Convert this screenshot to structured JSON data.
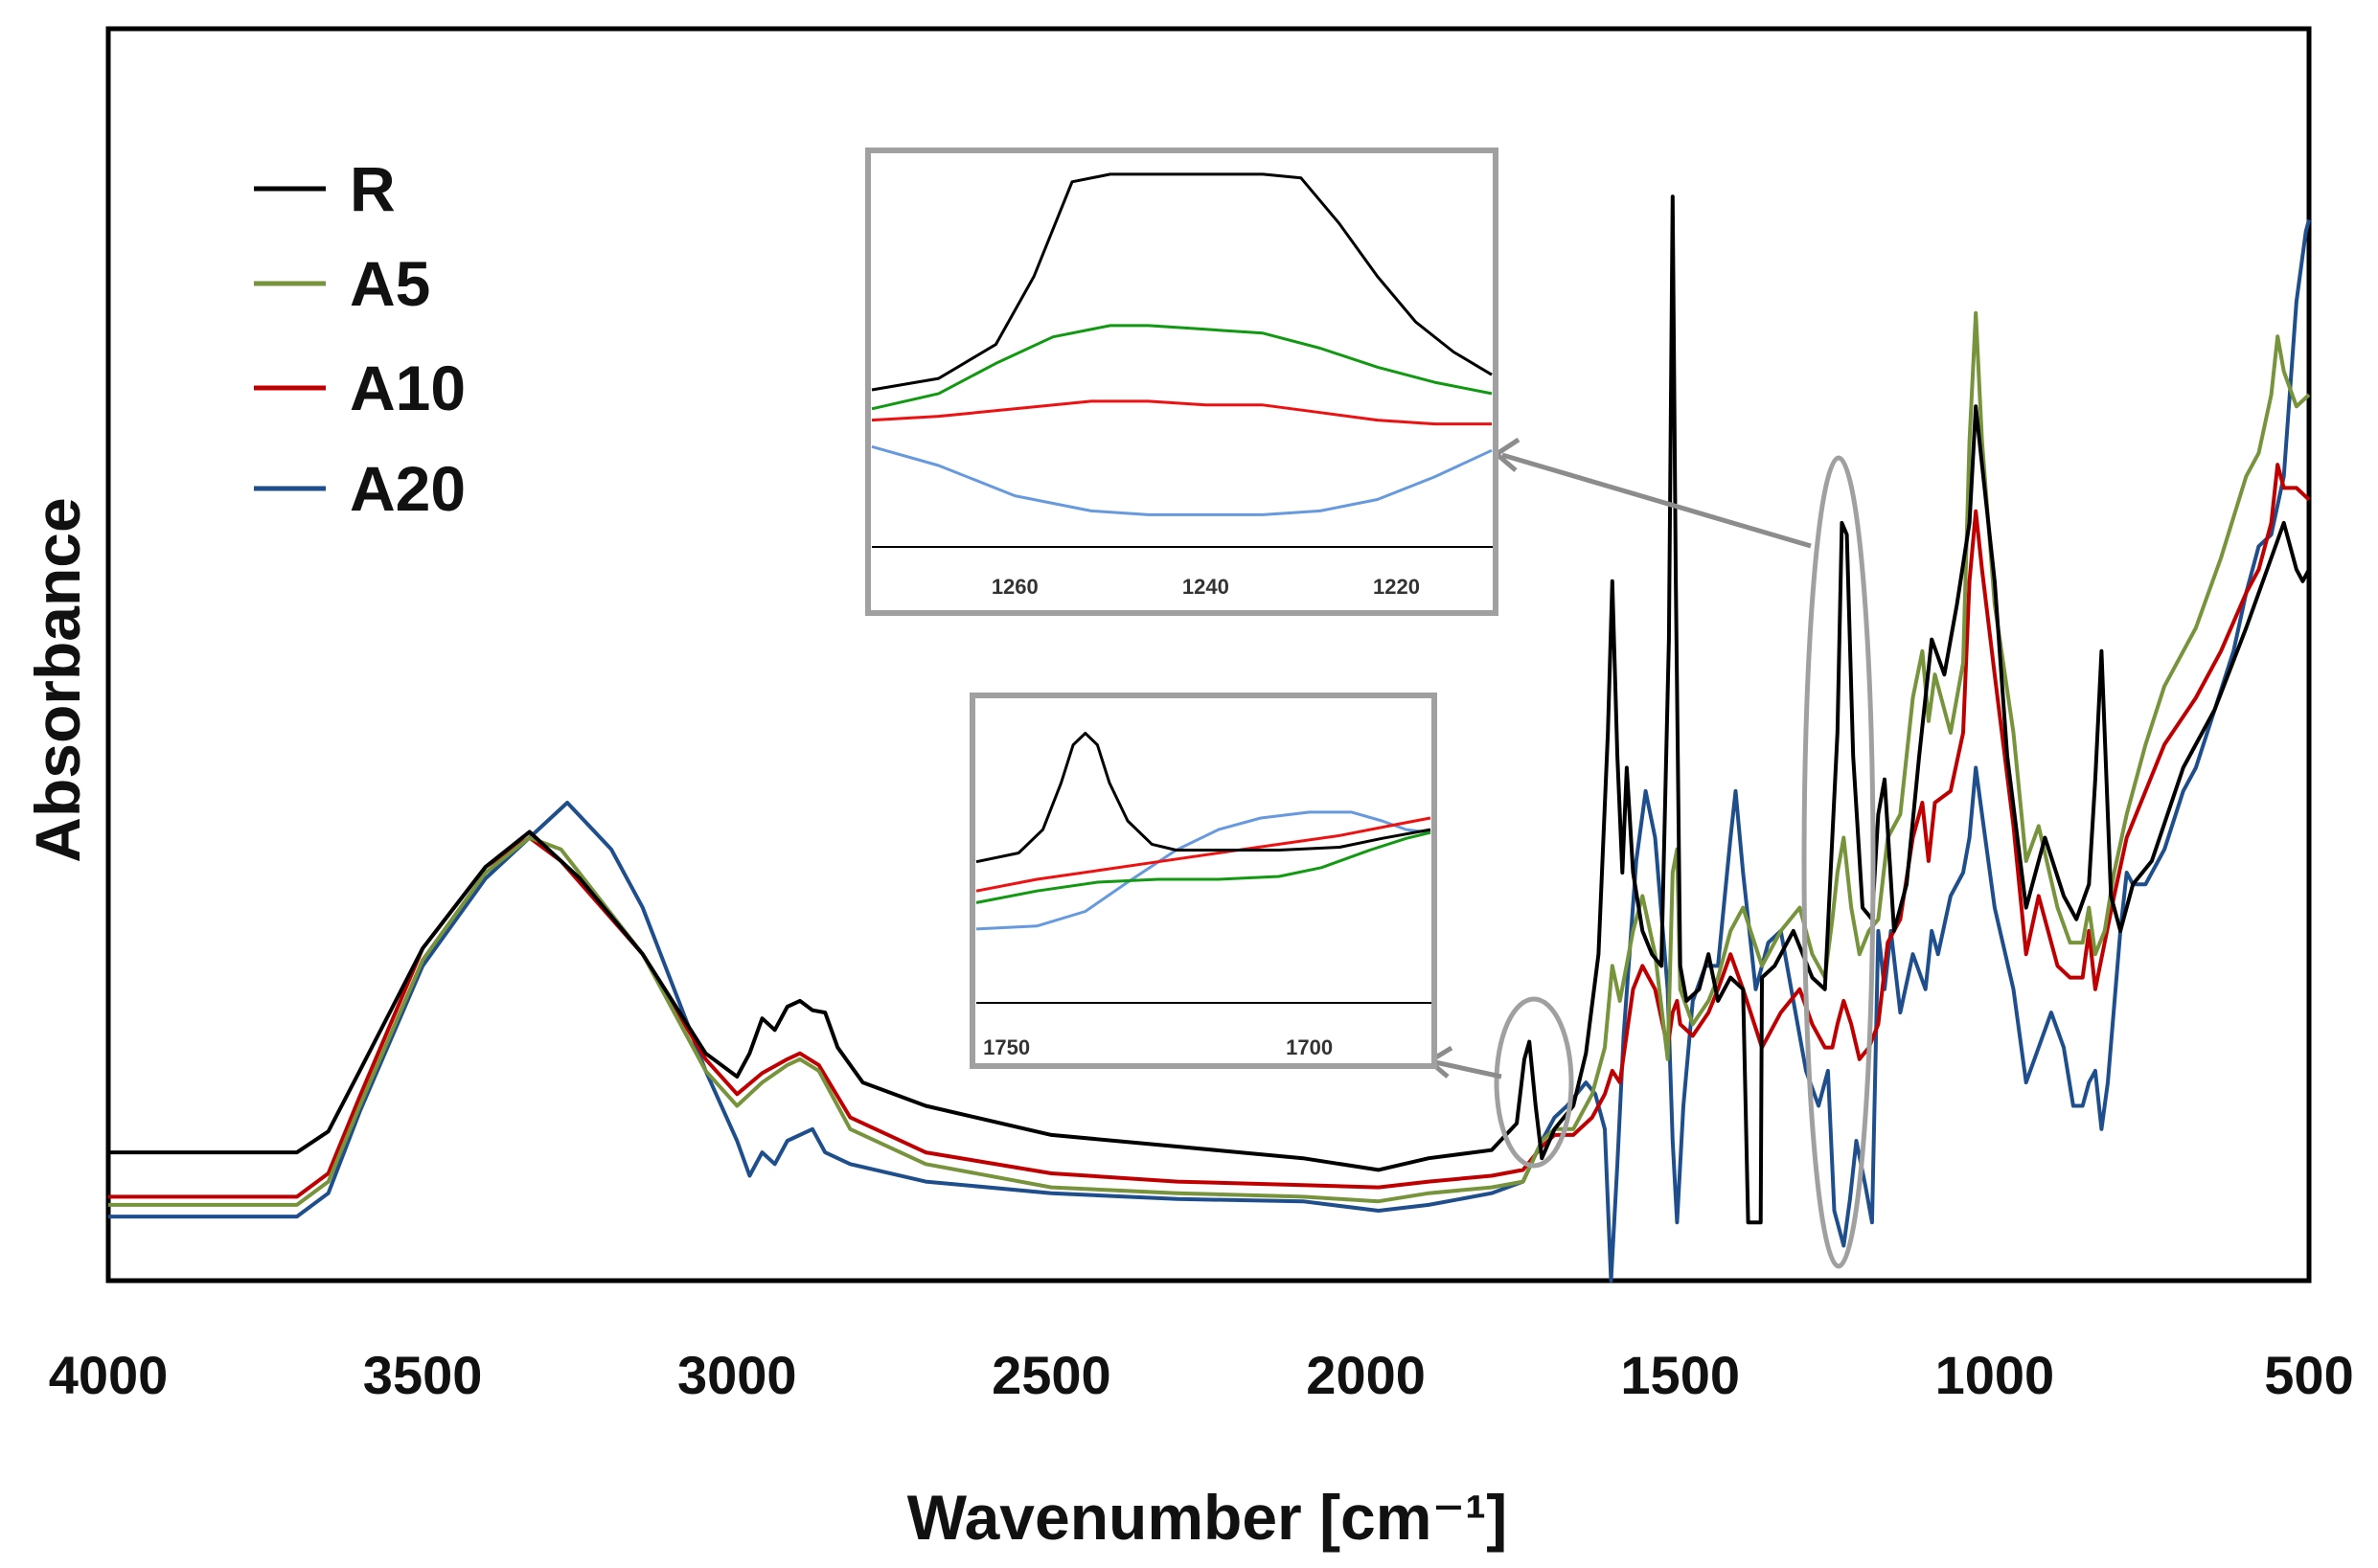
{
  "chart_data": {
    "type": "line",
    "title": "",
    "xlabel": "Wavenumber [cm⁻¹]",
    "ylabel": "Absorbance",
    "xlim": [
      4000,
      500
    ],
    "x_reversed": true,
    "ylim": [
      0,
      1
    ],
    "grid": false,
    "xticks": [
      "4000",
      "3500",
      "3000",
      "2500",
      "2000",
      "1500",
      "1000",
      "500"
    ],
    "xtick_values": [
      4000,
      3500,
      3000,
      2500,
      2000,
      1500,
      1000,
      500
    ],
    "legend": {
      "position": "top-left",
      "entries": [
        "R",
        "A5",
        "A10",
        "A20"
      ]
    },
    "series": [
      {
        "name": "R",
        "color": "#000000",
        "x": [
          4000,
          3700,
          3650,
          3600,
          3500,
          3400,
          3330,
          3250,
          3150,
          3050,
          3000,
          2980,
          2960,
          2940,
          2920,
          2900,
          2880,
          2860,
          2840,
          2800,
          2700,
          2500,
          2300,
          2100,
          1980,
          1900,
          1800,
          1760,
          1748,
          1740,
          1730,
          1720,
          1700,
          1670,
          1650,
          1630,
          1615,
          1608,
          1600,
          1592,
          1585,
          1575,
          1560,
          1545,
          1530,
          1518,
          1512,
          1507,
          1500,
          1490,
          1470,
          1455,
          1440,
          1420,
          1400,
          1392,
          1390,
          1372,
          1370,
          1350,
          1320,
          1290,
          1270,
          1250,
          1243,
          1235,
          1225,
          1210,
          1195,
          1185,
          1175,
          1160,
          1140,
          1120,
          1100,
          1080,
          1060,
          1040,
          1030,
          1020,
          1000,
          980,
          950,
          920,
          890,
          870,
          850,
          840,
          830,
          825,
          815,
          800,
          780,
          750,
          700,
          650,
          600,
          560,
          540,
          520,
          510,
          500
        ],
        "y": [
          0.11,
          0.11,
          0.128,
          0.18,
          0.285,
          0.355,
          0.385,
          0.345,
          0.28,
          0.195,
          0.175,
          0.195,
          0.225,
          0.215,
          0.235,
          0.24,
          0.232,
          0.23,
          0.2,
          0.17,
          0.15,
          0.125,
          0.115,
          0.105,
          0.095,
          0.105,
          0.112,
          0.135,
          0.19,
          0.205,
          0.15,
          0.105,
          0.13,
          0.15,
          0.195,
          0.28,
          0.47,
          0.6,
          0.45,
          0.35,
          0.44,
          0.35,
          0.3,
          0.28,
          0.27,
          0.55,
          0.93,
          0.6,
          0.27,
          0.24,
          0.25,
          0.28,
          0.24,
          0.26,
          0.25,
          0.05,
          0.05,
          0.05,
          0.26,
          0.27,
          0.3,
          0.26,
          0.25,
          0.47,
          0.65,
          0.64,
          0.45,
          0.32,
          0.31,
          0.4,
          0.43,
          0.3,
          0.34,
          0.45,
          0.55,
          0.52,
          0.58,
          0.65,
          0.75,
          0.7,
          0.6,
          0.45,
          0.32,
          0.38,
          0.33,
          0.31,
          0.34,
          0.43,
          0.54,
          0.47,
          0.33,
          0.3,
          0.34,
          0.36,
          0.44,
          0.49,
          0.56,
          0.62,
          0.65,
          0.61,
          0.6,
          0.61
        ]
      },
      {
        "name": "A5",
        "color": "#77933c",
        "x": [
          4000,
          3700,
          3650,
          3600,
          3500,
          3400,
          3330,
          3280,
          3150,
          3050,
          3000,
          2960,
          2920,
          2900,
          2870,
          2820,
          2700,
          2500,
          2300,
          2100,
          1980,
          1900,
          1800,
          1750,
          1720,
          1700,
          1670,
          1640,
          1620,
          1608,
          1596,
          1575,
          1560,
          1540,
          1520,
          1512,
          1505,
          1500,
          1480,
          1455,
          1440,
          1420,
          1400,
          1370,
          1340,
          1310,
          1290,
          1270,
          1258,
          1250,
          1240,
          1228,
          1215,
          1200,
          1185,
          1170,
          1150,
          1130,
          1115,
          1105,
          1095,
          1070,
          1050,
          1040,
          1030,
          1020,
          1000,
          970,
          950,
          930,
          900,
          880,
          860,
          850,
          840,
          825,
          810,
          790,
          760,
          730,
          680,
          640,
          600,
          580,
          560,
          550,
          540,
          520,
          500
        ],
        "y": [
          0.065,
          0.065,
          0.085,
          0.15,
          0.275,
          0.35,
          0.38,
          0.37,
          0.28,
          0.18,
          0.15,
          0.17,
          0.185,
          0.19,
          0.18,
          0.13,
          0.1,
          0.08,
          0.075,
          0.072,
          0.068,
          0.075,
          0.08,
          0.085,
          0.12,
          0.13,
          0.13,
          0.16,
          0.2,
          0.27,
          0.24,
          0.3,
          0.33,
          0.28,
          0.19,
          0.35,
          0.37,
          0.25,
          0.22,
          0.24,
          0.26,
          0.3,
          0.32,
          0.27,
          0.3,
          0.32,
          0.28,
          0.26,
          0.31,
          0.35,
          0.38,
          0.32,
          0.28,
          0.3,
          0.31,
          0.38,
          0.4,
          0.5,
          0.54,
          0.48,
          0.52,
          0.47,
          0.53,
          0.72,
          0.83,
          0.72,
          0.58,
          0.47,
          0.36,
          0.39,
          0.32,
          0.29,
          0.29,
          0.32,
          0.28,
          0.3,
          0.35,
          0.4,
          0.46,
          0.51,
          0.56,
          0.62,
          0.69,
          0.71,
          0.76,
          0.81,
          0.78,
          0.75,
          0.76
        ]
      },
      {
        "name": "A10",
        "color": "#c00000",
        "x": [
          4000,
          3700,
          3650,
          3600,
          3500,
          3400,
          3330,
          3280,
          3150,
          3050,
          3000,
          2960,
          2920,
          2900,
          2870,
          2820,
          2700,
          2500,
          2300,
          2100,
          1980,
          1900,
          1800,
          1750,
          1720,
          1700,
          1670,
          1640,
          1620,
          1608,
          1596,
          1575,
          1560,
          1540,
          1520,
          1512,
          1505,
          1500,
          1480,
          1455,
          1440,
          1420,
          1400,
          1370,
          1340,
          1310,
          1290,
          1270,
          1258,
          1250,
          1240,
          1228,
          1215,
          1200,
          1185,
          1170,
          1150,
          1130,
          1115,
          1105,
          1095,
          1070,
          1050,
          1040,
          1030,
          1020,
          1000,
          970,
          950,
          930,
          900,
          880,
          860,
          850,
          840,
          825,
          810,
          790,
          760,
          730,
          680,
          640,
          600,
          580,
          560,
          550,
          540,
          520,
          500
        ],
        "y": [
          0.072,
          0.072,
          0.092,
          0.158,
          0.285,
          0.355,
          0.38,
          0.36,
          0.28,
          0.19,
          0.16,
          0.178,
          0.19,
          0.195,
          0.185,
          0.14,
          0.11,
          0.092,
          0.085,
          0.082,
          0.08,
          0.085,
          0.09,
          0.095,
          0.115,
          0.125,
          0.125,
          0.14,
          0.16,
          0.18,
          0.17,
          0.25,
          0.27,
          0.25,
          0.2,
          0.23,
          0.24,
          0.22,
          0.21,
          0.23,
          0.25,
          0.28,
          0.25,
          0.2,
          0.23,
          0.25,
          0.22,
          0.2,
          0.2,
          0.22,
          0.24,
          0.22,
          0.19,
          0.2,
          0.22,
          0.29,
          0.31,
          0.38,
          0.41,
          0.36,
          0.41,
          0.42,
          0.47,
          0.6,
          0.66,
          0.61,
          0.52,
          0.39,
          0.28,
          0.33,
          0.27,
          0.26,
          0.26,
          0.3,
          0.25,
          0.29,
          0.33,
          0.38,
          0.42,
          0.46,
          0.5,
          0.54,
          0.59,
          0.61,
          0.65,
          0.7,
          0.68,
          0.68,
          0.67
        ]
      },
      {
        "name": "A20",
        "color": "#1f4e8c",
        "x": [
          4000,
          3700,
          3650,
          3600,
          3500,
          3400,
          3330,
          3270,
          3200,
          3150,
          3050,
          3000,
          2980,
          2960,
          2940,
          2920,
          2880,
          2860,
          2820,
          2700,
          2500,
          2300,
          2100,
          1980,
          1900,
          1800,
          1750,
          1720,
          1700,
          1680,
          1650,
          1635,
          1620,
          1610,
          1600,
          1590,
          1570,
          1555,
          1540,
          1520,
          1512,
          1505,
          1495,
          1480,
          1460,
          1440,
          1420,
          1412,
          1400,
          1380,
          1360,
          1340,
          1320,
          1300,
          1280,
          1265,
          1255,
          1240,
          1230,
          1220,
          1205,
          1195,
          1185,
          1175,
          1165,
          1150,
          1130,
          1110,
          1100,
          1090,
          1070,
          1050,
          1040,
          1030,
          1020,
          1000,
          970,
          950,
          930,
          910,
          890,
          875,
          860,
          850,
          840,
          830,
          820,
          800,
          790,
          780,
          760,
          730,
          700,
          680,
          650,
          620,
          600,
          580,
          560,
          540,
          520,
          505,
          500
        ],
        "y": [
          0.055,
          0.055,
          0.075,
          0.145,
          0.27,
          0.345,
          0.38,
          0.41,
          0.37,
          0.32,
          0.18,
          0.12,
          0.09,
          0.11,
          0.1,
          0.12,
          0.13,
          0.11,
          0.1,
          0.085,
          0.075,
          0.07,
          0.068,
          0.06,
          0.065,
          0.075,
          0.085,
          0.12,
          0.14,
          0.15,
          0.17,
          0.16,
          0.13,
          0.0,
          0.1,
          0.21,
          0.36,
          0.42,
          0.38,
          0.25,
          0.12,
          0.05,
          0.15,
          0.24,
          0.27,
          0.27,
          0.38,
          0.42,
          0.35,
          0.25,
          0.29,
          0.3,
          0.24,
          0.18,
          0.15,
          0.18,
          0.06,
          0.03,
          0.07,
          0.12,
          0.08,
          0.05,
          0.3,
          0.25,
          0.3,
          0.23,
          0.28,
          0.25,
          0.3,
          0.28,
          0.33,
          0.35,
          0.38,
          0.44,
          0.4,
          0.32,
          0.25,
          0.17,
          0.2,
          0.23,
          0.2,
          0.15,
          0.15,
          0.17,
          0.18,
          0.13,
          0.17,
          0.3,
          0.35,
          0.34,
          0.34,
          0.37,
          0.42,
          0.44,
          0.49,
          0.54,
          0.59,
          0.63,
          0.64,
          0.69,
          0.84,
          0.9,
          0.91
        ]
      }
    ],
    "insets": [
      {
        "name": "inset-1240",
        "xlim": [
          1275,
          1210
        ],
        "xticks": [
          "1260",
          "1240",
          "1220"
        ],
        "xtick_values": [
          1260,
          1240,
          1220
        ],
        "ylim": [
          0,
          1
        ],
        "source_highlight_x": 1240,
        "series": [
          {
            "name": "R",
            "color": "#000000",
            "x": [
              1275,
              1268,
              1262,
              1258,
              1254,
              1250,
              1246,
              1240,
              1234,
              1230,
              1226,
              1222,
              1218,
              1214,
              1210
            ],
            "y": [
              0.4,
              0.43,
              0.52,
              0.7,
              0.95,
              0.97,
              0.97,
              0.97,
              0.97,
              0.96,
              0.84,
              0.7,
              0.58,
              0.5,
              0.44
            ]
          },
          {
            "name": "A5",
            "color": "#119911",
            "x": [
              1275,
              1268,
              1262,
              1256,
              1250,
              1246,
              1240,
              1234,
              1228,
              1222,
              1216,
              1210
            ],
            "y": [
              0.35,
              0.39,
              0.47,
              0.54,
              0.57,
              0.57,
              0.56,
              0.55,
              0.51,
              0.46,
              0.42,
              0.39
            ]
          },
          {
            "name": "A10",
            "color": "#ee1111",
            "x": [
              1275,
              1268,
              1260,
              1252,
              1246,
              1240,
              1234,
              1228,
              1222,
              1216,
              1210
            ],
            "y": [
              0.32,
              0.33,
              0.35,
              0.37,
              0.37,
              0.36,
              0.36,
              0.34,
              0.32,
              0.31,
              0.31
            ]
          },
          {
            "name": "A20",
            "color": "#6699dd",
            "x": [
              1275,
              1268,
              1260,
              1252,
              1246,
              1240,
              1234,
              1228,
              1222,
              1216,
              1210
            ],
            "y": [
              0.25,
              0.2,
              0.12,
              0.08,
              0.07,
              0.07,
              0.07,
              0.08,
              0.11,
              0.17,
              0.24
            ]
          }
        ]
      },
      {
        "name": "inset-1730",
        "xlim": [
          1755,
          1680
        ],
        "xticks": [
          "1750",
          "1700"
        ],
        "xtick_values": [
          1750,
          1700
        ],
        "ylim": [
          0,
          1
        ],
        "source_highlight_x": 1738,
        "series": [
          {
            "name": "R",
            "color": "#000000",
            "x": [
              1755,
              1748,
              1744,
              1741,
              1739,
              1737,
              1735,
              1733,
              1730,
              1726,
              1722,
              1715,
              1705,
              1695,
              1688,
              1680
            ],
            "y": [
              0.46,
              0.49,
              0.57,
              0.73,
              0.86,
              0.9,
              0.86,
              0.73,
              0.6,
              0.52,
              0.5,
              0.5,
              0.5,
              0.51,
              0.54,
              0.57
            ]
          },
          {
            "name": "A5",
            "color": "#119911",
            "x": [
              1755,
              1745,
              1735,
              1725,
              1715,
              1705,
              1698,
              1690,
              1684,
              1680
            ],
            "y": [
              0.32,
              0.36,
              0.39,
              0.4,
              0.4,
              0.41,
              0.44,
              0.5,
              0.54,
              0.56
            ]
          },
          {
            "name": "A10",
            "color": "#ee1111",
            "x": [
              1755,
              1745,
              1735,
              1725,
              1715,
              1705,
              1695,
              1685,
              1680
            ],
            "y": [
              0.36,
              0.4,
              0.43,
              0.46,
              0.49,
              0.52,
              0.55,
              0.59,
              0.61
            ]
          },
          {
            "name": "A20",
            "color": "#6699dd",
            "x": [
              1755,
              1745,
              1737,
              1730,
              1722,
              1715,
              1708,
              1700,
              1693,
              1688,
              1684,
              1680
            ],
            "y": [
              0.23,
              0.24,
              0.29,
              0.39,
              0.5,
              0.57,
              0.61,
              0.63,
              0.63,
              0.6,
              0.57,
              0.56
            ]
          }
        ]
      }
    ]
  }
}
